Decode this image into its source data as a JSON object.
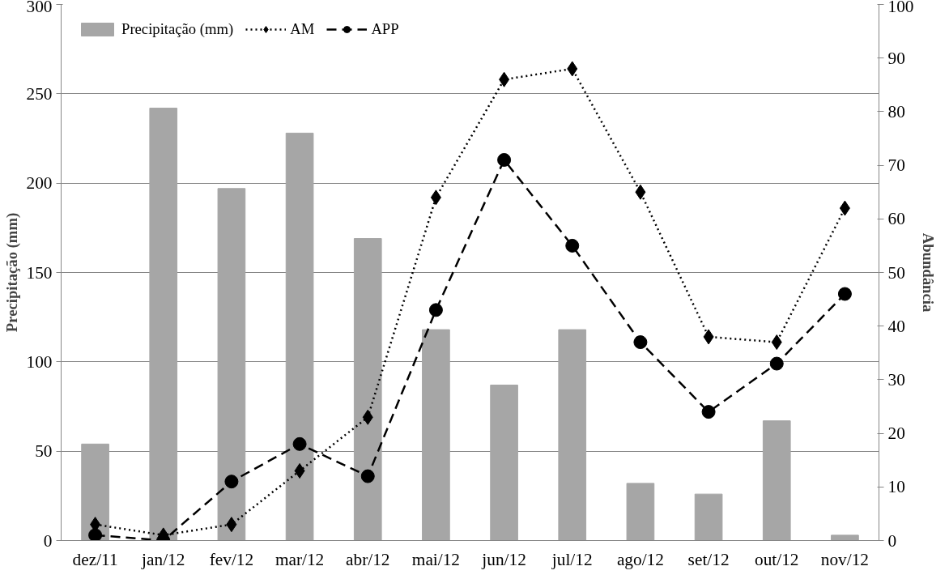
{
  "chart_data": {
    "type": "bar",
    "ylabel": "Precipitação (mm)",
    "y2label": "Abundância",
    "categories": [
      "dez/11",
      "jan/12",
      "fev/12",
      "mar/12",
      "abr/12",
      "mai/12",
      "jun/12",
      "jul/12",
      "ago/12",
      "set/12",
      "out/12",
      "nov/12"
    ],
    "series": [
      {
        "name": "Precipitação (mm)",
        "color": "#a6a6a6",
        "values": [
          54,
          242,
          197,
          228,
          169,
          118,
          87,
          118,
          32,
          26,
          67,
          3
        ]
      },
      {
        "name": "AM",
        "type": "line",
        "axis": "y2",
        "color": "#000000",
        "marker": "diamond",
        "line_style": "dotted",
        "values": [
          3,
          1,
          3,
          13,
          23,
          64,
          86,
          88,
          65,
          38,
          37,
          62
        ]
      },
      {
        "name": "APP",
        "type": "line",
        "axis": "y2",
        "color": "#000000",
        "marker": "circle",
        "line_style": "dashed",
        "values": [
          1,
          0,
          11,
          18,
          12,
          43,
          71,
          55,
          37,
          24,
          33,
          46
        ]
      }
    ],
    "ylim": [
      0,
      300
    ],
    "yticks": [
      0,
      50,
      100,
      150,
      200,
      250,
      300
    ],
    "y2lim": [
      0,
      100
    ],
    "y2ticks": [
      0,
      10,
      20,
      30,
      40,
      50,
      60,
      70,
      80,
      90,
      100
    ],
    "grid": "y",
    "legend": "top left"
  }
}
